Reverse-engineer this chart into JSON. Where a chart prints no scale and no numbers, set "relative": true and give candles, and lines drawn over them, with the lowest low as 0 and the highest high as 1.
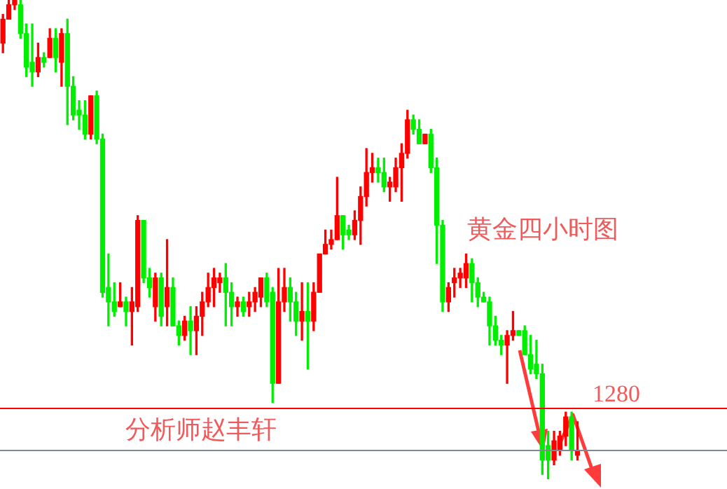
{
  "chart_data": {
    "type": "candlestick",
    "title": "黄金四小时图",
    "annotations": [
      "分析师赵丰轩",
      "1280"
    ],
    "relative": true,
    "tick_labels": false,
    "categories": [
      null,
      null,
      null,
      null,
      null,
      null,
      null,
      null,
      null,
      null,
      null,
      null,
      null,
      null,
      null,
      null,
      null,
      null,
      null,
      null,
      null,
      null,
      null,
      null,
      null,
      null,
      null,
      null,
      null,
      null,
      null,
      null,
      null,
      null,
      null,
      null,
      null,
      null,
      null,
      null,
      null,
      null,
      null,
      null,
      null,
      null,
      null,
      null,
      null,
      null,
      null,
      null,
      null,
      null,
      null,
      null,
      null,
      null,
      null,
      null,
      null,
      null,
      null,
      null,
      null,
      null,
      null,
      null,
      null,
      null,
      null,
      null,
      null,
      null,
      null,
      null,
      null,
      null,
      null,
      null,
      null,
      null,
      null,
      null,
      null,
      null,
      null,
      null,
      null,
      null,
      null,
      null,
      null,
      null,
      null,
      null,
      null,
      null,
      null,
      null,
      null,
      null,
      null,
      null,
      null,
      null,
      null,
      null,
      null,
      null,
      null,
      null,
      null,
      null,
      null,
      null,
      null,
      null,
      null,
      null,
      null,
      null,
      null,
      null
    ],
    "ohlc": [
      [
        0.91,
        0.97,
        0.89,
        0.96
      ],
      [
        0.96,
        1.0,
        0.96,
        0.99
      ],
      [
        0.99,
        1.0,
        0.98,
        1.0
      ],
      [
        0.99,
        1.0,
        0.92,
        0.93
      ],
      [
        0.93,
        0.95,
        0.84,
        0.86
      ],
      [
        0.87,
        0.95,
        0.82,
        0.85
      ],
      [
        0.85,
        0.91,
        0.84,
        0.88
      ],
      [
        0.88,
        0.89,
        0.86,
        0.87
      ],
      [
        0.88,
        0.94,
        0.88,
        0.92
      ],
      [
        0.92,
        0.94,
        0.85,
        0.88
      ],
      [
        0.87,
        0.94,
        0.82,
        0.93
      ],
      [
        0.93,
        0.96,
        0.74,
        0.82
      ],
      [
        0.82,
        0.84,
        0.75,
        0.76
      ],
      [
        0.77,
        0.79,
        0.73,
        0.76
      ],
      [
        0.76,
        0.79,
        0.71,
        0.72
      ],
      [
        0.72,
        0.8,
        0.71,
        0.8
      ],
      [
        0.8,
        0.81,
        0.7,
        0.71
      ],
      [
        0.71,
        0.72,
        0.38,
        0.39
      ],
      [
        0.4,
        0.47,
        0.32,
        0.37
      ],
      [
        0.37,
        0.41,
        0.34,
        0.35
      ],
      [
        0.36,
        0.41,
        0.36,
        0.37
      ],
      [
        0.37,
        0.38,
        0.32,
        0.35
      ],
      [
        0.35,
        0.4,
        0.28,
        0.37
      ],
      [
        0.36,
        0.55,
        0.35,
        0.54
      ],
      [
        0.54,
        0.54,
        0.41,
        0.42
      ],
      [
        0.42,
        0.44,
        0.38,
        0.4
      ],
      [
        0.36,
        0.43,
        0.33,
        0.42
      ],
      [
        0.42,
        0.43,
        0.32,
        0.34
      ],
      [
        0.36,
        0.5,
        0.32,
        0.4
      ],
      [
        0.4,
        0.42,
        0.32,
        0.32
      ],
      [
        0.32,
        0.33,
        0.28,
        0.3
      ],
      [
        0.3,
        0.34,
        0.29,
        0.33
      ],
      [
        0.33,
        0.36,
        0.26,
        0.31
      ],
      [
        0.31,
        0.36,
        0.26,
        0.34
      ],
      [
        0.34,
        0.39,
        0.3,
        0.37
      ],
      [
        0.37,
        0.43,
        0.36,
        0.4
      ],
      [
        0.4,
        0.44,
        0.36,
        0.42
      ],
      [
        0.41,
        0.43,
        0.39,
        0.42
      ],
      [
        0.42,
        0.45,
        0.32,
        0.39
      ],
      [
        0.39,
        0.41,
        0.32,
        0.36
      ],
      [
        0.36,
        0.38,
        0.34,
        0.37
      ],
      [
        0.37,
        0.38,
        0.34,
        0.35
      ],
      [
        0.36,
        0.39,
        0.34,
        0.37
      ],
      [
        0.37,
        0.4,
        0.35,
        0.39
      ],
      [
        0.38,
        0.42,
        0.36,
        0.42
      ],
      [
        0.42,
        0.43,
        0.36,
        0.37
      ],
      [
        0.39,
        0.4,
        0.16,
        0.2
      ],
      [
        0.2,
        0.44,
        0.2,
        0.37
      ],
      [
        0.37,
        0.44,
        0.35,
        0.4
      ],
      [
        0.4,
        0.42,
        0.33,
        0.37
      ],
      [
        0.37,
        0.39,
        0.3,
        0.33
      ],
      [
        0.33,
        0.41,
        0.29,
        0.35
      ],
      [
        0.35,
        0.41,
        0.23,
        0.33
      ],
      [
        0.33,
        0.41,
        0.31,
        0.39
      ],
      [
        0.39,
        0.47,
        0.39,
        0.47
      ],
      [
        0.47,
        0.52,
        0.47,
        0.49
      ],
      [
        0.49,
        0.52,
        0.48,
        0.5
      ],
      [
        0.5,
        0.63,
        0.5,
        0.55
      ],
      [
        0.55,
        0.55,
        0.48,
        0.51
      ],
      [
        0.52,
        0.53,
        0.5,
        0.51
      ],
      [
        0.51,
        0.56,
        0.5,
        0.54
      ],
      [
        0.54,
        0.61,
        0.49,
        0.59
      ],
      [
        0.59,
        0.69,
        0.57,
        0.64
      ],
      [
        0.64,
        0.68,
        0.62,
        0.65
      ],
      [
        0.65,
        0.67,
        0.62,
        0.64
      ],
      [
        0.64,
        0.67,
        0.6,
        0.61
      ],
      [
        0.61,
        0.63,
        0.58,
        0.62
      ],
      [
        0.61,
        0.67,
        0.6,
        0.65
      ],
      [
        0.65,
        0.7,
        0.58,
        0.68
      ],
      [
        0.68,
        0.77,
        0.67,
        0.75
      ],
      [
        0.75,
        0.76,
        0.72,
        0.73
      ],
      [
        0.73,
        0.75,
        0.7,
        0.7
      ],
      [
        0.7,
        0.72,
        0.7,
        0.72
      ],
      [
        0.72,
        0.73,
        0.64,
        0.65
      ],
      [
        0.65,
        0.67,
        0.45,
        0.53
      ],
      [
        0.53,
        0.54,
        0.35,
        0.37
      ],
      [
        0.37,
        0.41,
        0.35,
        0.4
      ],
      [
        0.41,
        0.44,
        0.38,
        0.42
      ],
      [
        0.42,
        0.44,
        0.4,
        0.43
      ],
      [
        0.42,
        0.47,
        0.4,
        0.45
      ],
      [
        0.45,
        0.46,
        0.37,
        0.41
      ],
      [
        0.41,
        0.42,
        0.36,
        0.38
      ],
      [
        0.38,
        0.39,
        0.37,
        0.37
      ],
      [
        0.37,
        0.38,
        0.28,
        0.32
      ],
      [
        0.32,
        0.34,
        0.28,
        0.29
      ],
      [
        0.29,
        0.3,
        0.26,
        0.28
      ],
      [
        0.28,
        0.31,
        0.2,
        0.3
      ],
      [
        0.3,
        0.35,
        0.29,
        0.31
      ],
      [
        0.31,
        0.31,
        0.3,
        0.3
      ],
      [
        0.31,
        0.32,
        0.26,
        0.26
      ],
      [
        0.26,
        0.3,
        0.22,
        0.23
      ],
      [
        0.24,
        0.29,
        0.21,
        0.22
      ],
      [
        0.22,
        0.24,
        0.01,
        0.04
      ],
      [
        0.07,
        0.1,
        0.0,
        0.04
      ],
      [
        0.04,
        0.1,
        0.03,
        0.08
      ],
      [
        0.06,
        0.1,
        0.05,
        0.09
      ],
      [
        0.09,
        0.14,
        0.07,
        0.13
      ],
      [
        0.13,
        0.14,
        0.04,
        0.06
      ],
      [
        0.05,
        0.12,
        0.04,
        0.06
      ],
      null,
      null,
      null,
      null,
      null,
      null,
      null,
      null,
      null,
      null,
      null,
      null,
      null,
      null,
      null,
      null,
      null,
      null,
      null,
      null,
      null,
      null,
      null,
      null,
      null
    ],
    "colors": [
      "#ff0000",
      "#ff0000",
      "#ff0000",
      "#00ee00",
      "#00ee00",
      "#00ee00",
      "#ff0000",
      "#00ee00",
      "#ff0000",
      "#00ee00",
      "#ff0000",
      "#00ee00",
      "#00ee00",
      "#00ee00",
      "#00ee00",
      "#ff0000",
      "#00ee00",
      "#00ee00",
      "#00ee00",
      "#00ee00",
      "#ff0000",
      "#00ee00",
      "#ff0000",
      "#ff0000",
      "#00ee00",
      "#00ee00",
      "#ff0000",
      "#00ee00",
      "#ff0000",
      "#00ee00",
      "#00ee00",
      "#ff0000",
      "#00ee00",
      "#ff0000",
      "#ff0000",
      "#ff0000",
      "#ff0000",
      "#ff0000",
      "#00ee00",
      "#00ee00",
      "#ff0000",
      "#00ee00",
      "#ff0000",
      "#ff0000",
      "#ff0000",
      "#00ee00",
      "#00ee00",
      "#ff0000",
      "#ff0000",
      "#00ee00",
      "#00ee00",
      "#ff0000",
      "#00ee00",
      "#ff0000",
      "#ff0000",
      "#ff0000",
      "#ff0000",
      "#ff0000",
      "#00ee00",
      "#00ee00",
      "#ff0000",
      "#ff0000",
      "#ff0000",
      "#ff0000",
      "#00ee00",
      "#00ee00",
      "#ff0000",
      "#ff0000",
      "#ff0000",
      "#ff0000",
      "#00ee00",
      "#00ee00",
      "#ff0000",
      "#00ee00",
      "#00ee00",
      "#00ee00",
      "#ff0000",
      "#ff0000",
      "#ff0000",
      "#ff0000",
      "#00ee00",
      "#00ee00",
      "#00ee00",
      "#00ee00",
      "#00ee00",
      "#00ee00",
      "#ff0000",
      "#ff0000",
      "#00ee00",
      "#00ee00",
      "#00ee00",
      "#00ee00",
      "#00ee00",
      "#00ee00",
      "#ff0000",
      "#ff0000",
      "#ff0000",
      "#00ee00",
      "#ff0000",
      null,
      null,
      null,
      null,
      null,
      null,
      null,
      null,
      null,
      null,
      null,
      null,
      null,
      null,
      null,
      null,
      null,
      null,
      null,
      null,
      null,
      null,
      null,
      null,
      null
    ],
    "ref_lines": [
      {
        "axis": "y",
        "value": 0.15,
        "color": "#ff0000"
      },
      {
        "axis": "y",
        "value": 0.06,
        "color": "#808890"
      }
    ]
  }
}
